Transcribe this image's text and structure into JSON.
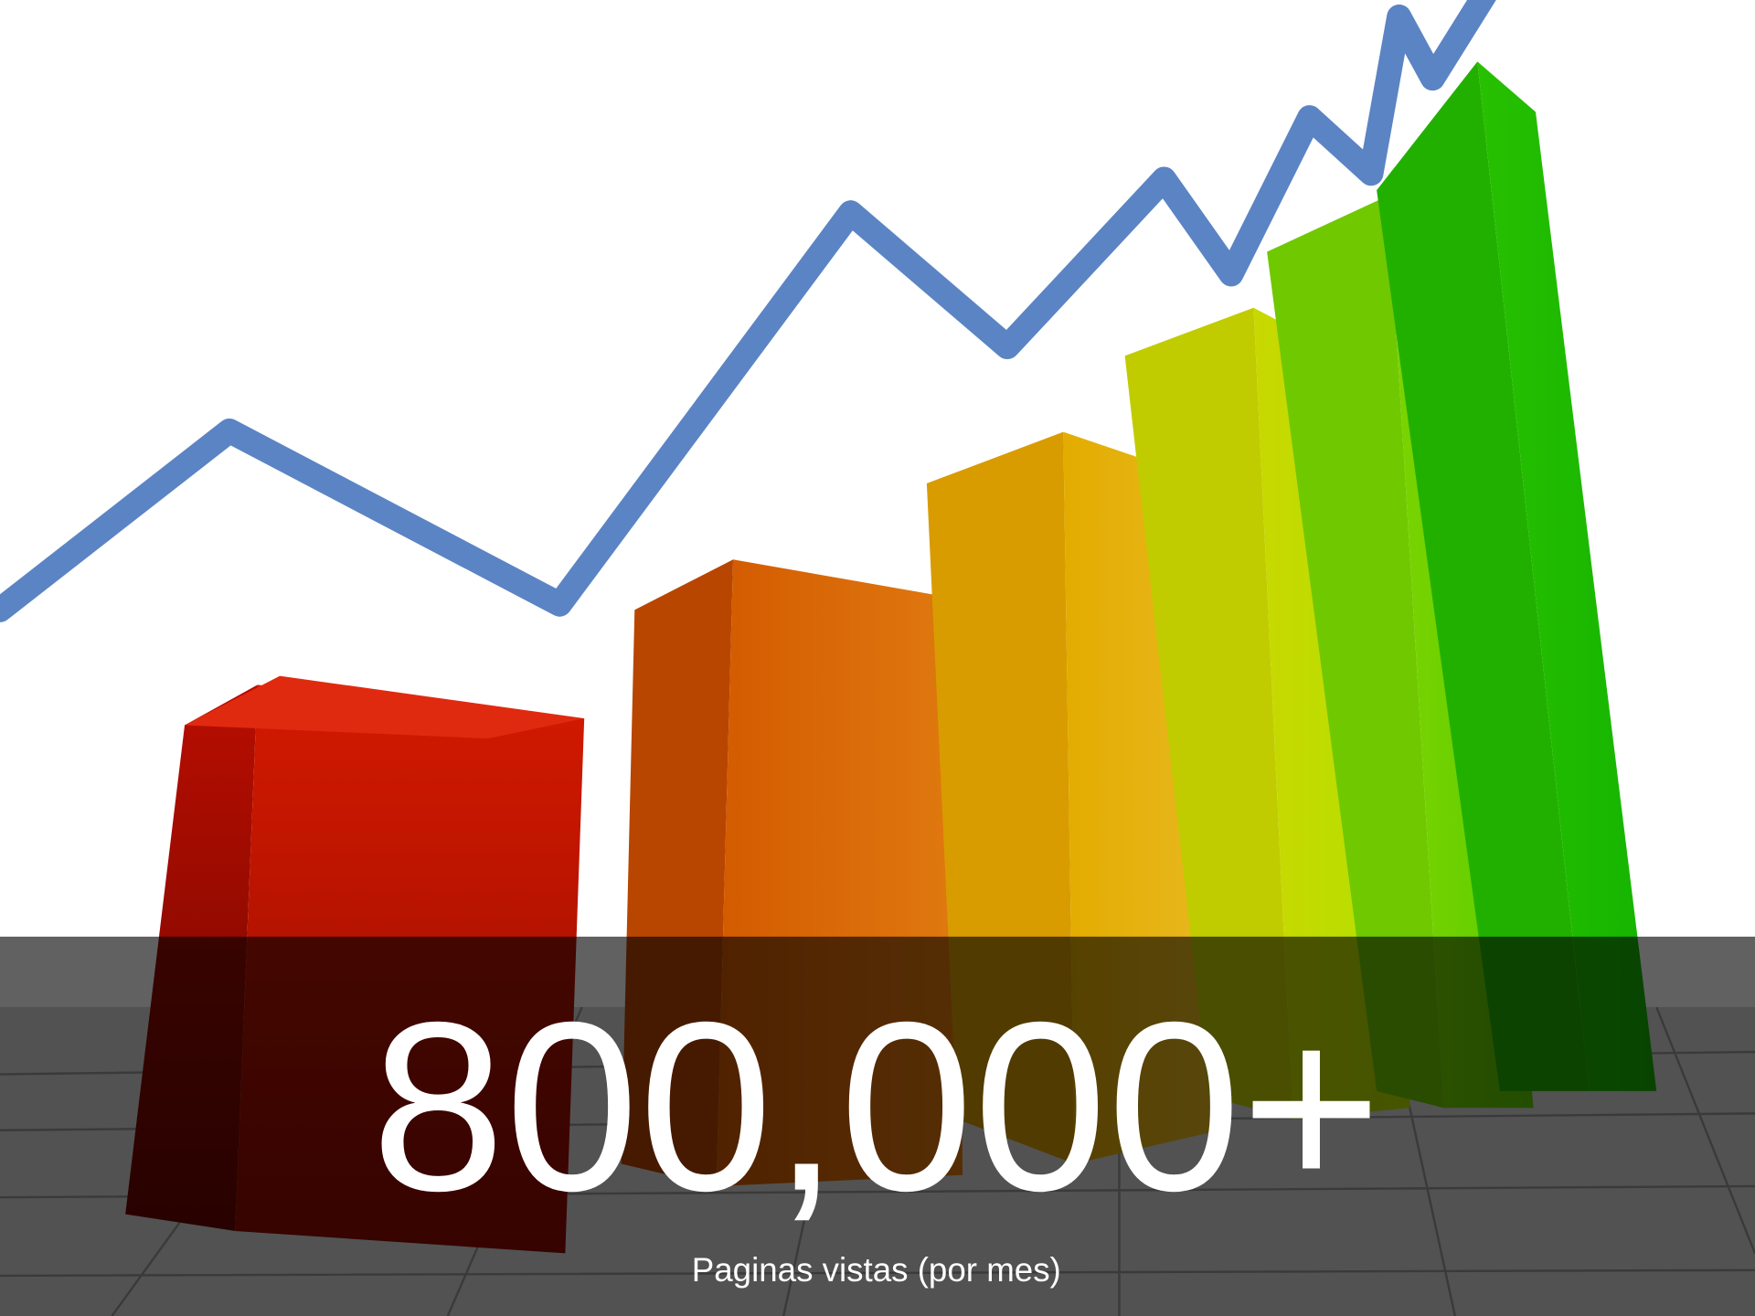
{
  "headline": "800,000+",
  "caption": "Paginas vistas (por mes)"
}
